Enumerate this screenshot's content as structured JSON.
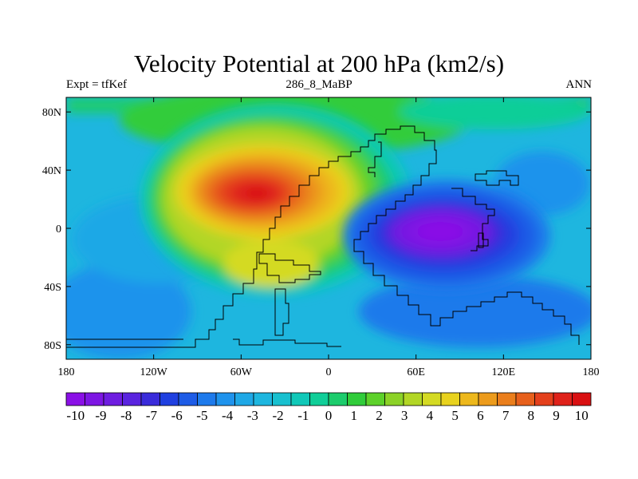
{
  "header": {
    "title": "Velocity Potential at 200 hPa (km2/s)",
    "left_label": "Expt = tfKef",
    "center_label": "286_8_MaBP",
    "right_label": "ANN"
  },
  "map": {
    "field": "velocity potential",
    "lon_range": [
      -180,
      180
    ],
    "lat_range": [
      -90,
      90
    ],
    "x_ticks": [
      "180",
      "120W",
      "60W",
      "0",
      "60E",
      "120E",
      "180"
    ],
    "y_ticks": [
      "80N",
      "40N",
      "0",
      "40S",
      "80S"
    ],
    "features": [
      {
        "name": "positive maximum",
        "lon": -50,
        "lat": 25,
        "value": 10
      },
      {
        "name": "negative minimum",
        "lon": 75,
        "lat": 0,
        "value": -10
      }
    ]
  },
  "colorbar": {
    "labels": [
      "-10",
      "-9",
      "-8",
      "-7",
      "-6",
      "-5",
      "-4",
      "-3",
      "-2",
      "-1",
      "0",
      "1",
      "2",
      "3",
      "4",
      "5",
      "6",
      "7",
      "8",
      "9",
      "10"
    ],
    "colors": [
      "#8A10E6",
      "#7D16E3",
      "#6E1DE0",
      "#5A24DF",
      "#3A2BDA",
      "#2040E0",
      "#1E5CE6",
      "#1E7AEB",
      "#1F93EC",
      "#1FA8E6",
      "#1EB6DF",
      "#18C0CF",
      "#10C8B8",
      "#10CE98",
      "#1CCC6C",
      "#30CC3A",
      "#5DD12A",
      "#8CD227",
      "#B2D625",
      "#D4DA23",
      "#E8D21E",
      "#EDB81C",
      "#EC9B1C",
      "#EA7E1C",
      "#E7601C",
      "#E4401C",
      "#DF221A",
      "#D91012"
    ]
  }
}
